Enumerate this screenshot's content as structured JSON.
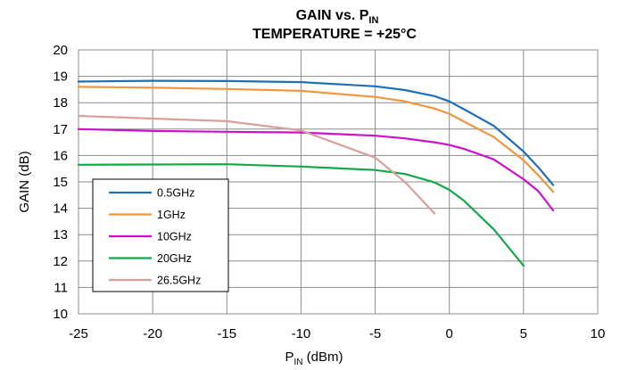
{
  "chart_data": {
    "type": "line",
    "title_line1_main": "GAIN vs. P",
    "title_line1_sub": "IN",
    "title_line2": "TEMPERATURE = +25°C",
    "xlabel_main": "P",
    "xlabel_sub": "IN",
    "xlabel_unit": " (dBm)",
    "ylabel": "GAIN (dB)",
    "xlim": [
      -25,
      10
    ],
    "ylim": [
      10,
      20
    ],
    "x_ticks": [
      -25,
      -20,
      -15,
      -10,
      -5,
      0,
      5,
      10
    ],
    "y_ticks": [
      10,
      11,
      12,
      13,
      14,
      15,
      16,
      17,
      18,
      19,
      20
    ],
    "grid": true,
    "legend_position": "lower-left",
    "series": [
      {
        "name": "0.5GHz",
        "color": "#1f6fb5",
        "x": [
          -25,
          -20,
          -15,
          -10,
          -5,
          -3,
          -1,
          0,
          1,
          3,
          5,
          6,
          7
        ],
        "y": [
          18.8,
          18.83,
          18.82,
          18.78,
          18.62,
          18.48,
          18.25,
          18.05,
          17.75,
          17.12,
          16.15,
          15.55,
          14.88
        ]
      },
      {
        "name": "1GHz",
        "color": "#f0963c",
        "x": [
          -25,
          -20,
          -15,
          -10,
          -5,
          -3,
          -1,
          0,
          1,
          3,
          5,
          6,
          7
        ],
        "y": [
          18.6,
          18.57,
          18.52,
          18.45,
          18.22,
          18.05,
          17.78,
          17.58,
          17.28,
          16.7,
          15.82,
          15.25,
          14.62
        ]
      },
      {
        "name": "10GHz",
        "color": "#cc10cc",
        "x": [
          -25,
          -20,
          -15,
          -10,
          -5,
          -3,
          -1,
          0,
          1,
          3,
          5,
          6,
          7
        ],
        "y": [
          17.0,
          16.93,
          16.9,
          16.87,
          16.75,
          16.65,
          16.5,
          16.4,
          16.25,
          15.85,
          15.1,
          14.65,
          13.92
        ]
      },
      {
        "name": "20GHz",
        "color": "#13a84a",
        "x": [
          -25,
          -20,
          -15,
          -10,
          -5,
          -3,
          -1,
          0,
          1,
          3,
          5
        ],
        "y": [
          15.65,
          15.66,
          15.67,
          15.58,
          15.45,
          15.3,
          14.98,
          14.7,
          14.28,
          13.2,
          11.82
        ]
      },
      {
        "name": "26.5GHz",
        "color": "#d9a09a",
        "x": [
          -25,
          -20,
          -15,
          -10,
          -5,
          -3,
          -1
        ],
        "y": [
          17.5,
          17.4,
          17.3,
          16.95,
          15.92,
          15.0,
          13.8
        ]
      }
    ]
  }
}
